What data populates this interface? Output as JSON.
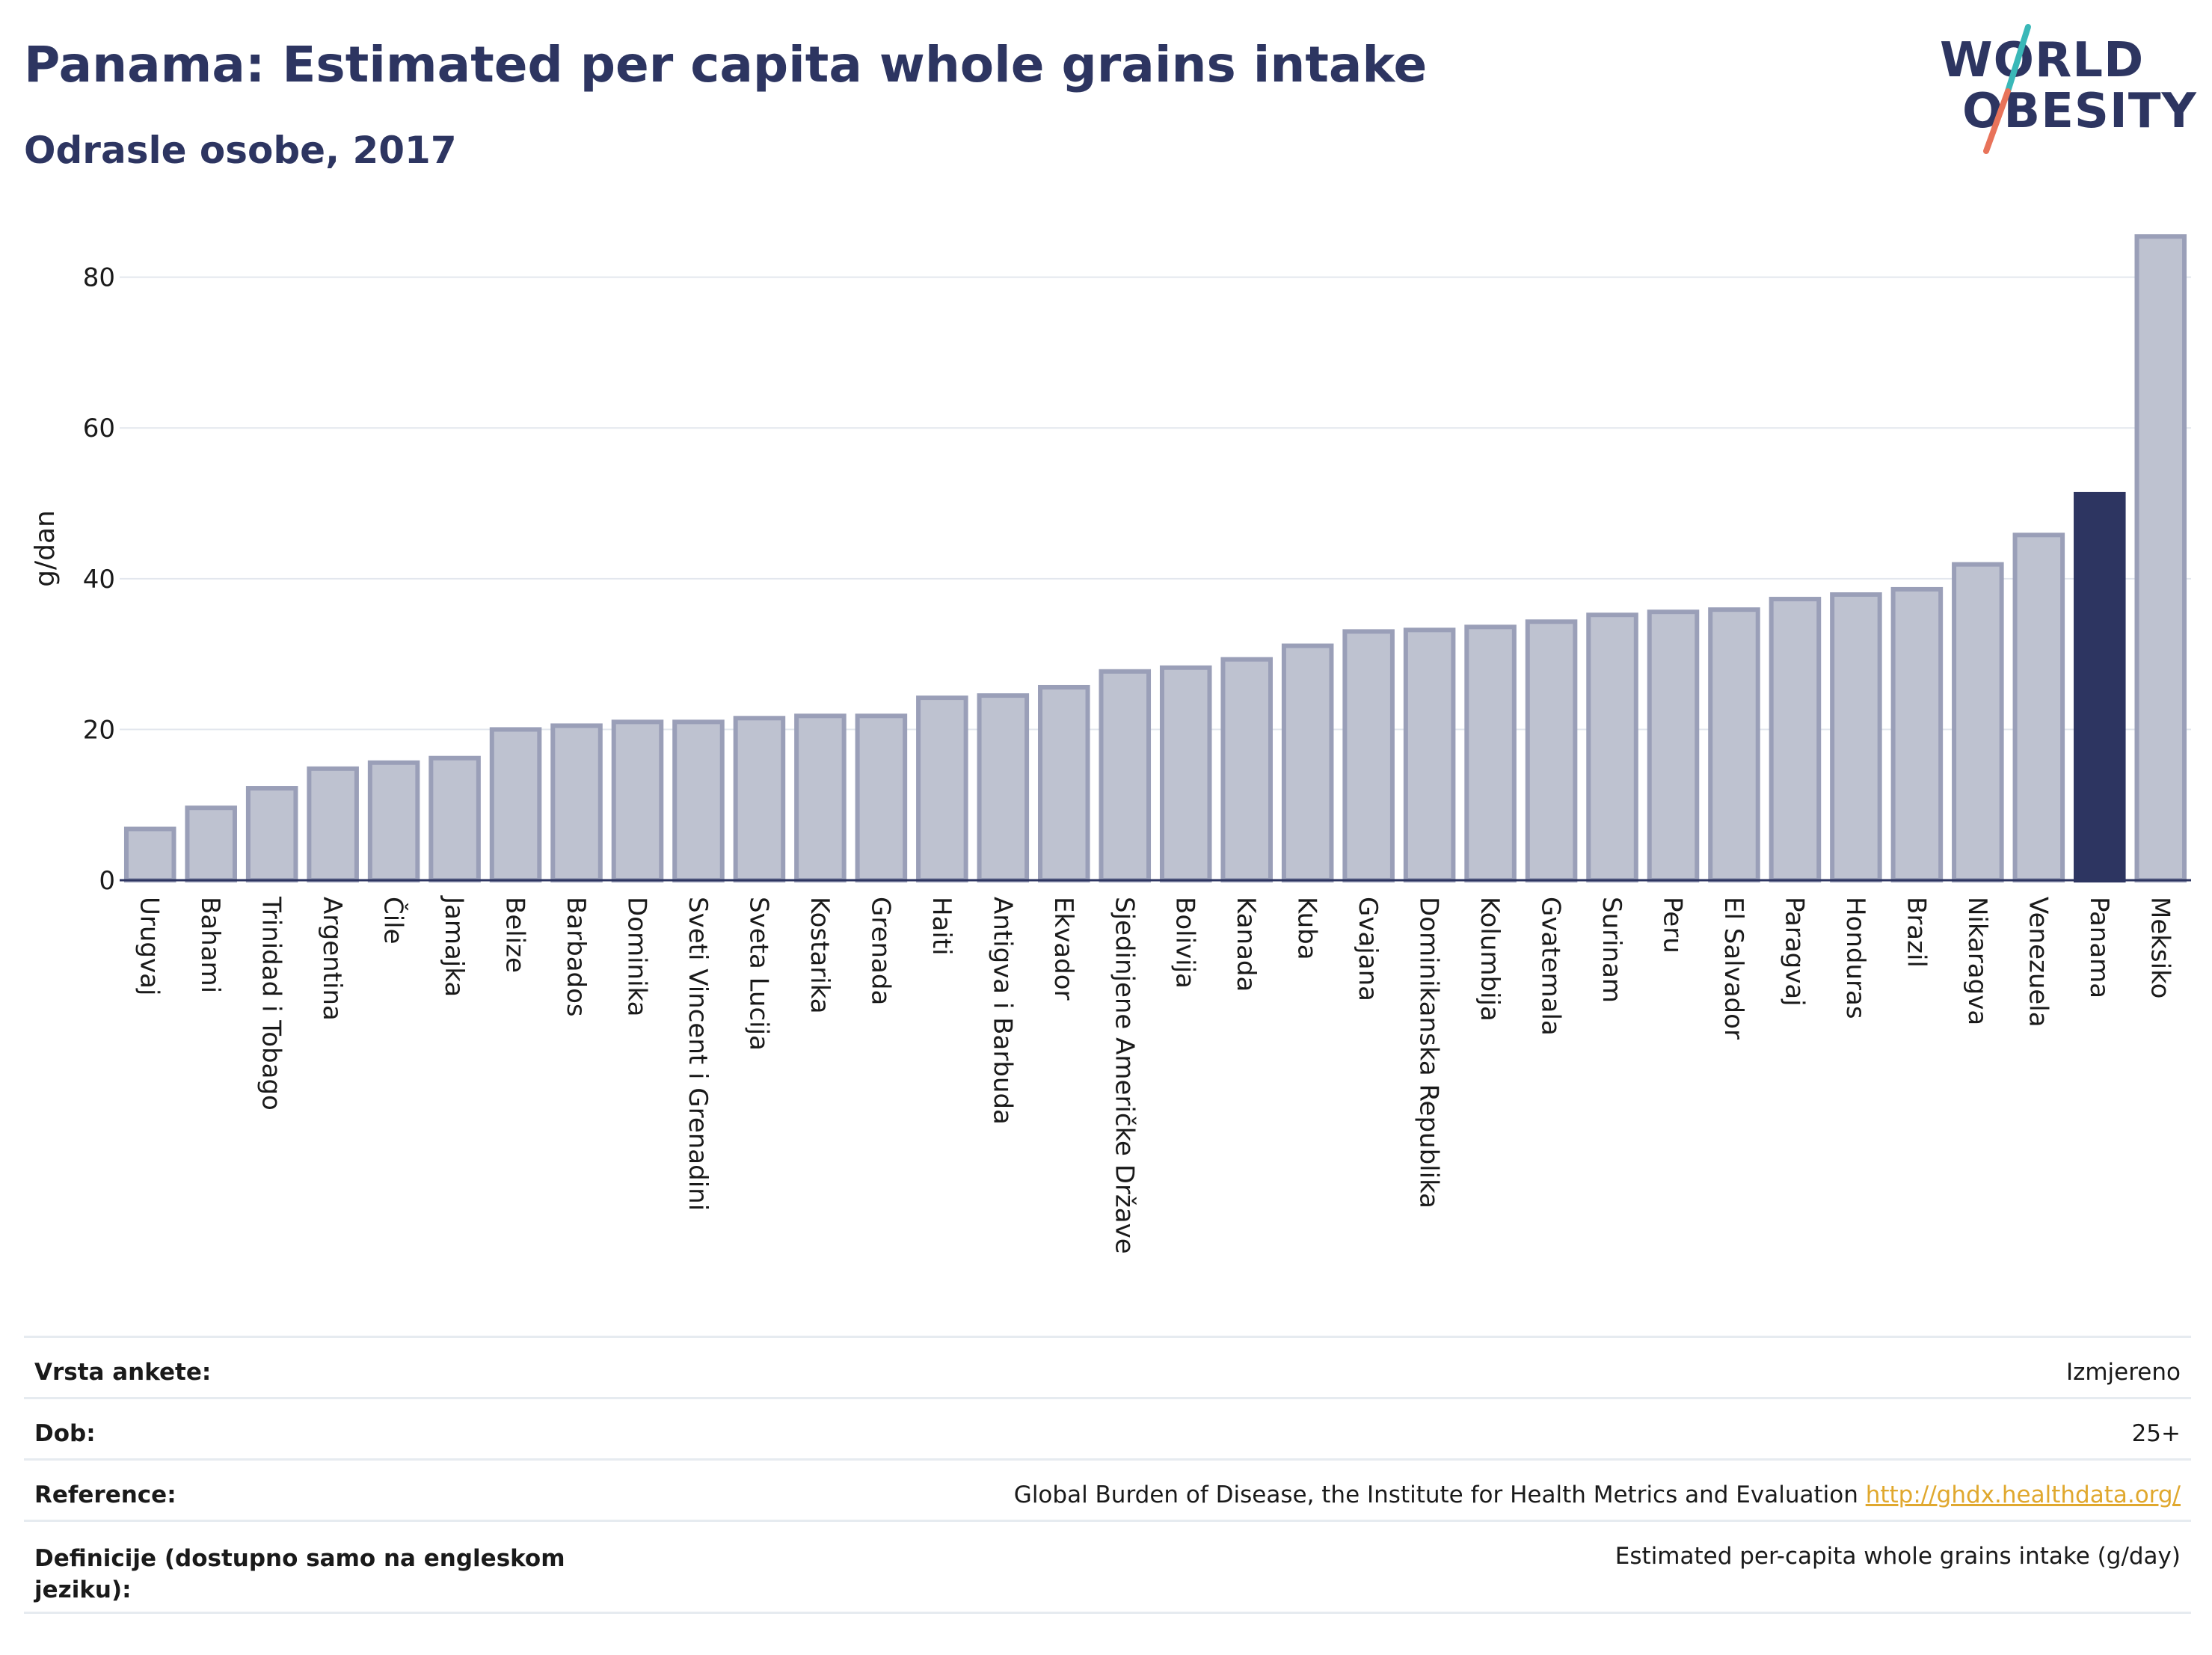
{
  "header": {
    "title": "Panama: Estimated per capita whole grains intake",
    "subtitle": "Odrasle osobe, 2017"
  },
  "logo": {
    "line1": "WORLD",
    "line2": "OBESITY",
    "colors": {
      "text": "#2d3561",
      "teal": "#3ab8b8",
      "coral": "#e8735a"
    }
  },
  "chart_data": {
    "type": "bar",
    "ylabel": "g/dan",
    "xlabel": "",
    "ylim": [
      0,
      88
    ],
    "yticks": [
      0,
      20,
      40,
      60,
      80
    ],
    "grid": true,
    "highlight": "Panama",
    "colors": {
      "bar": "#bec2d0",
      "bar_edge": "#9a9fb8",
      "highlight": "#2d3561"
    },
    "categories": [
      "Urugvaj",
      "Bahami",
      "Trinidad i Tobago",
      "Argentina",
      "Čile",
      "Jamajka",
      "Belize",
      "Barbados",
      "Dominika",
      "Sveti Vincent i Grenadini",
      "Sveta Lucija",
      "Kostarika",
      "Grenada",
      "Haiti",
      "Antigva i Barbuda",
      "Ekvador",
      "Sjedinjene Američke Države",
      "Bolivija",
      "Kanada",
      "Kuba",
      "Gvajana",
      "Dominikanska Republika",
      "Kolumbija",
      "Gvatemala",
      "Surinam",
      "Peru",
      "El Salvador",
      "Paragvaj",
      "Honduras",
      "Brazil",
      "Nikaragva",
      "Venezuela",
      "Panama",
      "Meksiko"
    ],
    "values": [
      6.8,
      9.6,
      12.2,
      14.8,
      15.6,
      16.2,
      20.0,
      20.5,
      21.0,
      21.0,
      21.5,
      21.8,
      21.8,
      24.2,
      24.5,
      25.6,
      27.7,
      28.2,
      29.3,
      31.1,
      33.0,
      33.2,
      33.6,
      34.3,
      35.2,
      35.6,
      35.9,
      37.3,
      37.9,
      38.6,
      41.9,
      45.8,
      51.2,
      85.4
    ]
  },
  "info": {
    "survey_label": "Vrsta ankete:",
    "survey_value": "Izmjereno",
    "age_label": "Dob:",
    "age_value": "25+",
    "ref_label": "Reference:",
    "ref_value": "Global Burden of Disease, the Institute for Health Metrics and Evaluation",
    "ref_link": "http://ghdx.healthdata.org/",
    "def_label": "Definicije (dostupno samo na engleskom jeziku):",
    "def_value": "Estimated per-capita whole grains intake (g/day)"
  }
}
